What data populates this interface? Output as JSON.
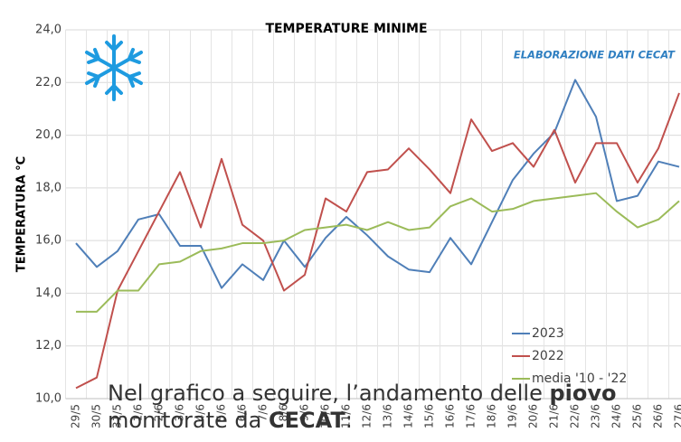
{
  "chart_data": {
    "type": "line",
    "title": "TEMPERATURE  MINIME",
    "subtitle": "ELABORAZIONE DATI CECAT",
    "ylabel": "TEMPERATURA °C",
    "categories": [
      "29/5",
      "30/5",
      "31/5",
      "1/6",
      "2/6",
      "3/6",
      "4/6",
      "5/6",
      "6/6",
      "7/6",
      "8/6",
      "9/6",
      "10/6",
      "11/6",
      "12/6",
      "13/6",
      "14/6",
      "15/6",
      "16/6",
      "17/6",
      "18/6",
      "19/6",
      "20/6",
      "21/6",
      "22/6",
      "23/6",
      "24/6",
      "25/6",
      "26/6",
      "27/6"
    ],
    "series": [
      {
        "name": "2023",
        "color": "#4f7fb8",
        "values": [
          15.9,
          15.0,
          15.6,
          16.8,
          17.0,
          15.8,
          15.8,
          14.2,
          15.1,
          14.5,
          16.0,
          15.0,
          16.1,
          16.9,
          16.2,
          15.4,
          14.9,
          14.8,
          16.1,
          15.1,
          16.7,
          18.3,
          19.3,
          20.1,
          22.1,
          20.7,
          17.5,
          17.7,
          19.0,
          18.8
        ]
      },
      {
        "name": "2022",
        "color": "#c0504d",
        "values": [
          10.4,
          10.8,
          14.1,
          15.6,
          17.1,
          18.6,
          16.5,
          19.1,
          16.6,
          16.0,
          14.1,
          14.7,
          17.6,
          17.1,
          18.6,
          18.7,
          19.5,
          18.7,
          17.8,
          20.6,
          19.4,
          19.7,
          18.8,
          20.2,
          18.2,
          19.7,
          19.7,
          18.2,
          19.5,
          21.6
        ]
      },
      {
        "name": "media '10 - '22",
        "color": "#9bbb59",
        "values": [
          13.3,
          13.3,
          14.1,
          14.1,
          15.1,
          15.2,
          15.6,
          15.7,
          15.9,
          15.9,
          16.0,
          16.4,
          16.5,
          16.6,
          16.4,
          16.7,
          16.4,
          16.5,
          17.3,
          17.6,
          17.1,
          17.2,
          17.5,
          17.6,
          17.7,
          17.8,
          17.1,
          16.5,
          16.8,
          17.5
        ]
      }
    ],
    "ylim": [
      10,
      24
    ],
    "yticks": [
      {
        "value": 10,
        "label": "10,0"
      },
      {
        "value": 12,
        "label": "12,0"
      },
      {
        "value": 14,
        "label": "14,0"
      },
      {
        "value": 16,
        "label": "16,0"
      },
      {
        "value": 18,
        "label": "18,0"
      },
      {
        "value": 20,
        "label": "20,0"
      },
      {
        "value": 22,
        "label": "22,0"
      },
      {
        "value": 24,
        "label": "24,0"
      }
    ],
    "grid": true,
    "legend": "lower right"
  },
  "caption": {
    "line1": "Nel grafico a seguire, l’andamento delle ",
    "line1_bold": "piovo",
    "line2": "monitorate da ",
    "line2_bold": "CECAT",
    "line2_end": ":"
  }
}
